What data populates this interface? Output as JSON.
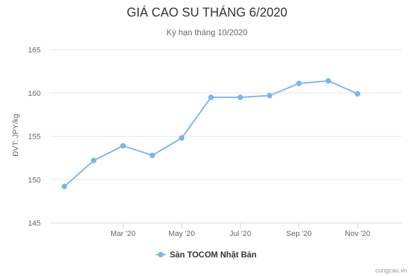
{
  "chart_data": {
    "type": "line",
    "title": "GIÁ CAO SU THÁNG 6/2020",
    "subtitle": "Kỳ hạn tháng 10/2020",
    "ylabel": "ĐVT: JPY/kg",
    "xlabel": "",
    "ylim": [
      145,
      165
    ],
    "yticks": [
      145,
      150,
      155,
      160,
      165
    ],
    "xlim": [
      "2020-01",
      "2020-12"
    ],
    "xticks": [
      {
        "label": "Mar '20",
        "x": "2020-03"
      },
      {
        "label": "May '20",
        "x": "2020-05"
      },
      {
        "label": "Jul '20",
        "x": "2020-07"
      },
      {
        "label": "Sep '20",
        "x": "2020-09"
      },
      {
        "label": "Nov '20",
        "x": "2020-11"
      }
    ],
    "grid": true,
    "legend_position": "bottom-center",
    "series": [
      {
        "name": "Sàn TOCOM Nhật Bản",
        "color": "#7cb5ec",
        "x": [
          "2020-01",
          "2020-02",
          "2020-03",
          "2020-04",
          "2020-05",
          "2020-06",
          "2020-07",
          "2020-08",
          "2020-09",
          "2020-10",
          "2020-11"
        ],
        "values": [
          149.2,
          152.2,
          153.9,
          152.8,
          154.8,
          159.5,
          159.5,
          159.7,
          161.1,
          161.4,
          159.9
        ]
      }
    ]
  },
  "credit": "cungcau.vn"
}
